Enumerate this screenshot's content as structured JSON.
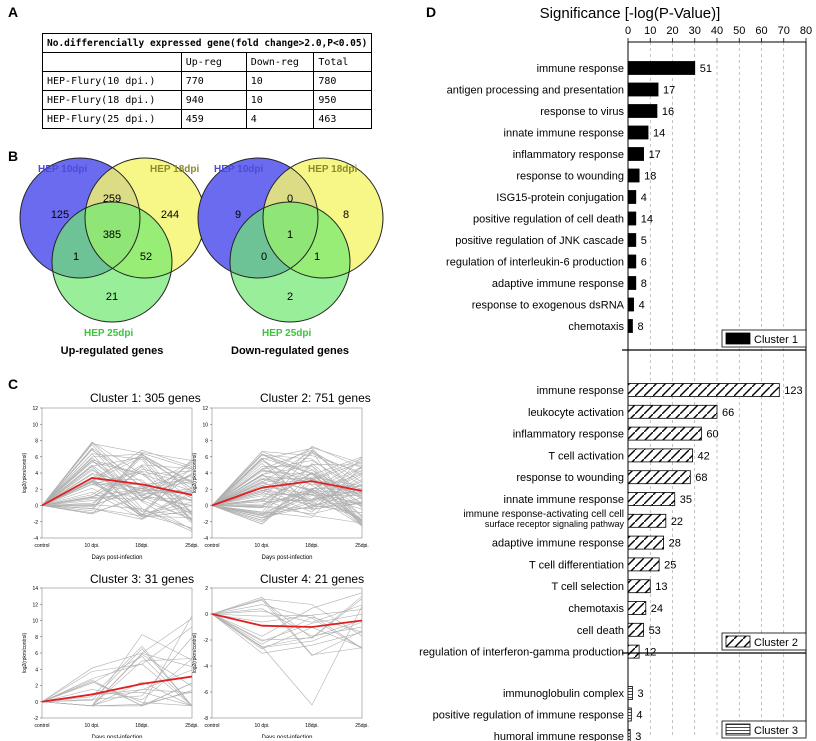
{
  "panels": {
    "A": "A",
    "B": "B",
    "C": "C",
    "D": "D"
  },
  "table": {
    "caption": "No.differencially expressed gene(fold change>2.0,P<0.05)",
    "headers": [
      "",
      "Up-reg",
      "Down-reg",
      "Total"
    ],
    "rows": [
      {
        "label": "HEP-Flury(10 dpi.)",
        "up": "770",
        "down": "10",
        "total": "780"
      },
      {
        "label": "HEP-Flury(18 dpi.)",
        "up": "940",
        "down": "10",
        "total": "950"
      },
      {
        "label": "HEP-Flury(25 dpi.)",
        "up": "459",
        "down": "4",
        "total": "463"
      }
    ]
  },
  "venn": {
    "up": {
      "title": "Up-regulated genes",
      "label_10": "HEP 10dpi",
      "label_18": "HEP 18dpi",
      "label_25": "HEP 25dpi",
      "only10": "125",
      "only18": "244",
      "only25": "21",
      "i10_18": "259",
      "i10_25": "1",
      "i18_25": "52",
      "all": "385"
    },
    "down": {
      "title": "Down-regulated genes",
      "label_10": "HEP 10dpi",
      "label_18": "HEP 18dpi",
      "label_25": "HEP 25dpi",
      "only10": "9",
      "only18": "8",
      "only25": "2",
      "i10_18": "0",
      "i10_25": "0",
      "i18_25": "1",
      "all": "1"
    },
    "colors": {
      "c10": "#6b6bf0",
      "c18": "#f5f56e",
      "c25": "#6ee86e",
      "l10": "#4b4bd8",
      "l18": "#8a8a2a",
      "l25": "#3cc43c"
    }
  },
  "clusters": {
    "xlabel": "Days post-infection",
    "ylabel": "log2(rpkm/control)",
    "xticks": [
      "control",
      "10 dpi.",
      "18dpi.",
      "25dpi."
    ],
    "items": [
      {
        "title": "Cluster 1:  305 genes",
        "yticks": [
          "-4",
          "-2",
          "0",
          "2",
          "4",
          "6",
          "8",
          "10",
          "12"
        ],
        "ylim": [
          -4,
          12
        ],
        "mean": [
          0,
          3.4,
          2.6,
          1.3
        ]
      },
      {
        "title": "Cluster 2:  751 genes",
        "yticks": [
          "-4",
          "-2",
          "0",
          "2",
          "4",
          "6",
          "8",
          "10",
          "12"
        ],
        "ylim": [
          -4,
          12
        ],
        "mean": [
          0,
          2.2,
          3.0,
          1.8
        ]
      },
      {
        "title": "Cluster 3:  31 genes",
        "yticks": [
          "-2",
          "0",
          "2",
          "4",
          "6",
          "8",
          "10",
          "12",
          "14"
        ],
        "ylim": [
          -2,
          14
        ],
        "mean": [
          0,
          0.9,
          2.2,
          3.1
        ]
      },
      {
        "title": "Cluster 4:  21 genes",
        "yticks": [
          "-8",
          "-6",
          "-4",
          "-2",
          "0",
          "2"
        ],
        "ylim": [
          -8,
          2
        ],
        "mean": [
          0,
          -0.9,
          -1.0,
          -0.5
        ]
      }
    ]
  },
  "chart_data": {
    "type": "bar",
    "title": "Significance [-log(P-Value)]",
    "xlim": [
      0,
      80
    ],
    "xticks": [
      "0",
      "10",
      "20",
      "30",
      "40",
      "50",
      "60",
      "70",
      "80"
    ],
    "clusters": [
      {
        "name": "Cluster 1",
        "categories": [
          "immune response",
          "antigen processing and presentation",
          "response to virus",
          "innate immune response",
          "inflammatory response",
          "response to wounding",
          "ISG15-protein conjugation",
          "positive regulation of cell death",
          "positive regulation of JNK cascade",
          "regulation of interleukin-6 production",
          "adaptive immune response",
          "response to exogenous dsRNA",
          "chemotaxis"
        ],
        "values": [
          30,
          13.5,
          13,
          9,
          7,
          5,
          3.5,
          3.5,
          3.5,
          3.5,
          3.5,
          2.5,
          2
        ],
        "labels": [
          "51",
          "17",
          "16",
          "14",
          "17",
          "18",
          "4",
          "14",
          "5",
          "6",
          "8",
          "4",
          "8"
        ]
      },
      {
        "name": "Cluster 2",
        "categories": [
          "immune response",
          "leukocyte activation",
          "inflammatory response",
          "T cell activation",
          "response to wounding",
          "innate immune response",
          "immune response-activating cell-surface receptor signaling pathway",
          "adaptive immune response",
          "T cell differentiation",
          "T cell selection",
          "chemotaxis",
          "cell death",
          "regulation of interferon-gamma production"
        ],
        "values": [
          68,
          40,
          33,
          29,
          28,
          21,
          17,
          16,
          14,
          10,
          8,
          7,
          5
        ],
        "labels": [
          "123",
          "66",
          "60",
          "42",
          "68",
          "35",
          "22",
          "28",
          "25",
          "13",
          "24",
          "53",
          "12"
        ]
      },
      {
        "name": "Cluster 3",
        "categories": [
          "immunoglobulin complex",
          "positive regulation of immune response",
          "humoral immune response"
        ],
        "values": [
          2,
          1.5,
          1
        ],
        "labels": [
          "3",
          "4",
          "3"
        ]
      }
    ]
  }
}
